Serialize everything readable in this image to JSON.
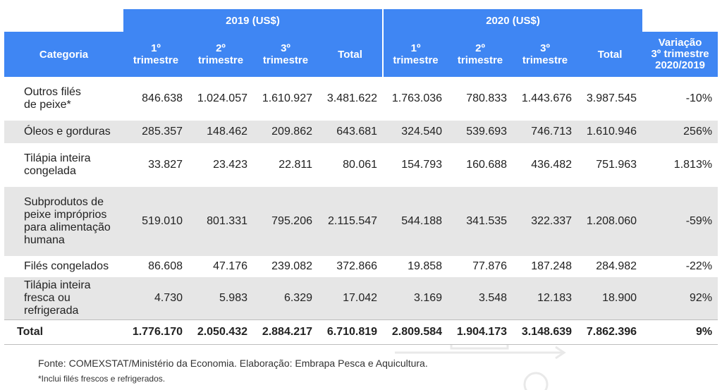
{
  "header": {
    "group_2019": "2019 (US$)",
    "group_2020": "2020 (US$)",
    "col_category": "Categoria",
    "col_q1": [
      "1º",
      "trimestre"
    ],
    "col_q2": [
      "2º",
      "trimestre"
    ],
    "col_q3": [
      "3º",
      "trimestre"
    ],
    "col_total": "Total",
    "col_variation": [
      "Variação",
      "3º trimestre",
      "2020/2019"
    ]
  },
  "rows": [
    {
      "category": [
        "Outros filés",
        "de peixe*"
      ],
      "values": [
        "846.638",
        "1.024.057",
        "1.610.927",
        "3.481.622",
        "1.763.036",
        "780.833",
        "1.443.676",
        "3.987.545"
      ],
      "variation": "-10%"
    },
    {
      "category": [
        "Óleos e gorduras"
      ],
      "values": [
        "285.357",
        "148.462",
        "209.862",
        "643.681",
        "324.540",
        "539.693",
        "746.713",
        "1.610.946"
      ],
      "variation": "256%"
    },
    {
      "category": [
        "Tilápia inteira",
        "congelada"
      ],
      "values": [
        "33.827",
        "23.423",
        "22.811",
        "80.061",
        "154.793",
        "160.688",
        "436.482",
        "751.963"
      ],
      "variation": "1.813%"
    },
    {
      "category": [
        "Subprodutos de",
        "peixe impróprios",
        "para alimentação",
        "humana"
      ],
      "values": [
        "519.010",
        "801.331",
        "795.206",
        "2.115.547",
        "544.188",
        "341.535",
        "322.337",
        "1.208.060"
      ],
      "variation": "-59%"
    },
    {
      "category": [
        "Filés congelados"
      ],
      "values": [
        "86.608",
        "47.176",
        "239.082",
        "372.866",
        "19.858",
        "77.876",
        "187.248",
        "284.982"
      ],
      "variation": "-22%"
    },
    {
      "category": [
        "Tilápia inteira",
        "fresca ou",
        "refrigerada"
      ],
      "values": [
        "4.730",
        "5.983",
        "6.329",
        "17.042",
        "3.169",
        "3.548",
        "12.183",
        "18.900"
      ],
      "variation": "92%"
    }
  ],
  "total": {
    "category": "Total",
    "values": [
      "1.776.170",
      "2.050.432",
      "2.884.217",
      "6.710.819",
      "2.809.584",
      "1.904.173",
      "3.148.639",
      "7.862.396"
    ],
    "variation": "9%"
  },
  "footnotes": {
    "source": "Fonte: COMEXSTAT/Ministério da Economia. Elaboração: Embrapa Pesca e Aquicultura.",
    "note": "*Inclui filés frescos e refrigerados."
  },
  "colors": {
    "header_blue": "#3f86f3",
    "stripe_gray": "#e6e6e6"
  }
}
